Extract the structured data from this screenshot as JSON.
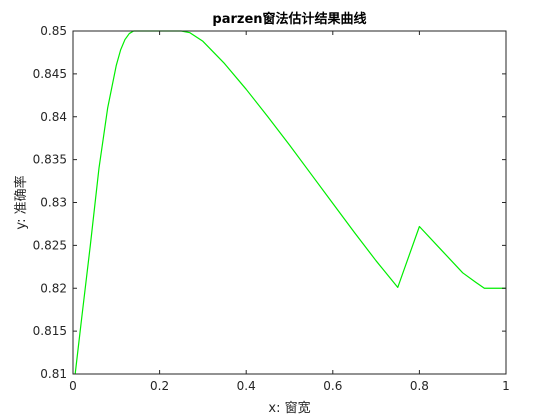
{
  "chart_data": {
    "type": "line",
    "title": "parzen窗法估计结果曲线",
    "xlabel": "x: 窗宽",
    "ylabel": "y: 准确率",
    "xlim": [
      0,
      1
    ],
    "ylim": [
      0.81,
      0.85
    ],
    "x_ticks": [
      "0",
      "0.2",
      "0.4",
      "0.6",
      "0.8",
      "1"
    ],
    "y_ticks": [
      "0.81",
      "0.815",
      "0.82",
      "0.825",
      "0.83",
      "0.835",
      "0.84",
      "0.845",
      "0.85"
    ],
    "grid": false,
    "series": [
      {
        "color": "#00ee00",
        "x": [
          0.005,
          0.02,
          0.04,
          0.06,
          0.08,
          0.1,
          0.11,
          0.12,
          0.13,
          0.14,
          0.15,
          0.2,
          0.25,
          0.27,
          0.3,
          0.35,
          0.4,
          0.45,
          0.5,
          0.55,
          0.6,
          0.65,
          0.7,
          0.75,
          0.8,
          0.85,
          0.9,
          0.93,
          0.95,
          1.0
        ],
        "y": [
          0.81,
          0.8165,
          0.825,
          0.834,
          0.841,
          0.846,
          0.8478,
          0.849,
          0.8497,
          0.85,
          0.85,
          0.85,
          0.85,
          0.8498,
          0.8488,
          0.8462,
          0.8432,
          0.84,
          0.8367,
          0.8333,
          0.8299,
          0.8265,
          0.8232,
          0.8201,
          0.8272,
          0.8245,
          0.8218,
          0.8207,
          0.82,
          0.82
        ]
      }
    ]
  }
}
